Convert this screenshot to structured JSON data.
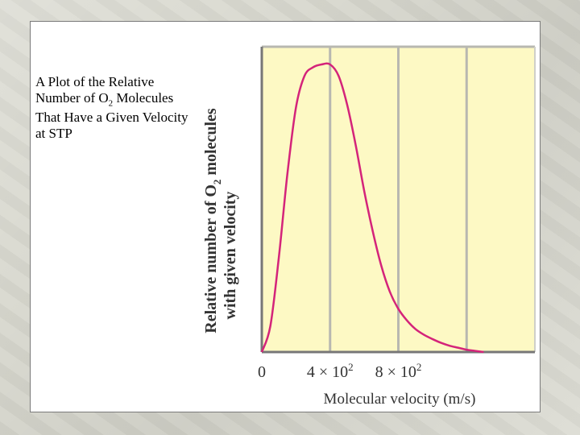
{
  "slide": {
    "title_pre": "A Plot of the Relative Number of O",
    "title_sub": "2",
    "title_post": " Molecules That Have a Given Velocity at STP"
  },
  "chart_data": {
    "type": "line",
    "xlabel": "Molecular velocity (m/s)",
    "ylabel_line1_pre": "Relative number of O",
    "ylabel_line1_sub": "2",
    "ylabel_line1_post": " molecules",
    "ylabel_line2": "with given velocity",
    "x_ticks": [
      {
        "value": 0,
        "label": "0",
        "base": "0",
        "exp": ""
      },
      {
        "value": 400,
        "label": "4 × 10²",
        "base": "4 × 10",
        "exp": "2"
      },
      {
        "value": 800,
        "label": "8 × 10²",
        "base": "8 × 10",
        "exp": "2"
      }
    ],
    "xlim": [
      0,
      1600
    ],
    "ylim": [
      0,
      1
    ],
    "grid": true,
    "series": [
      {
        "color": "#d4247a",
        "x": [
          0,
          50,
          100,
          150,
          200,
          250,
          300,
          350,
          400,
          450,
          500,
          550,
          600,
          650,
          700,
          750,
          800,
          850,
          900,
          950,
          1000,
          1050,
          1100,
          1150,
          1200,
          1250,
          1300
        ],
        "y": [
          0,
          0.09,
          0.33,
          0.62,
          0.85,
          0.96,
          0.99,
          1.0,
          1.0,
          0.96,
          0.86,
          0.72,
          0.56,
          0.42,
          0.3,
          0.21,
          0.15,
          0.11,
          0.08,
          0.06,
          0.045,
          0.032,
          0.022,
          0.015,
          0.008,
          0.004,
          0.0
        ]
      }
    ]
  }
}
